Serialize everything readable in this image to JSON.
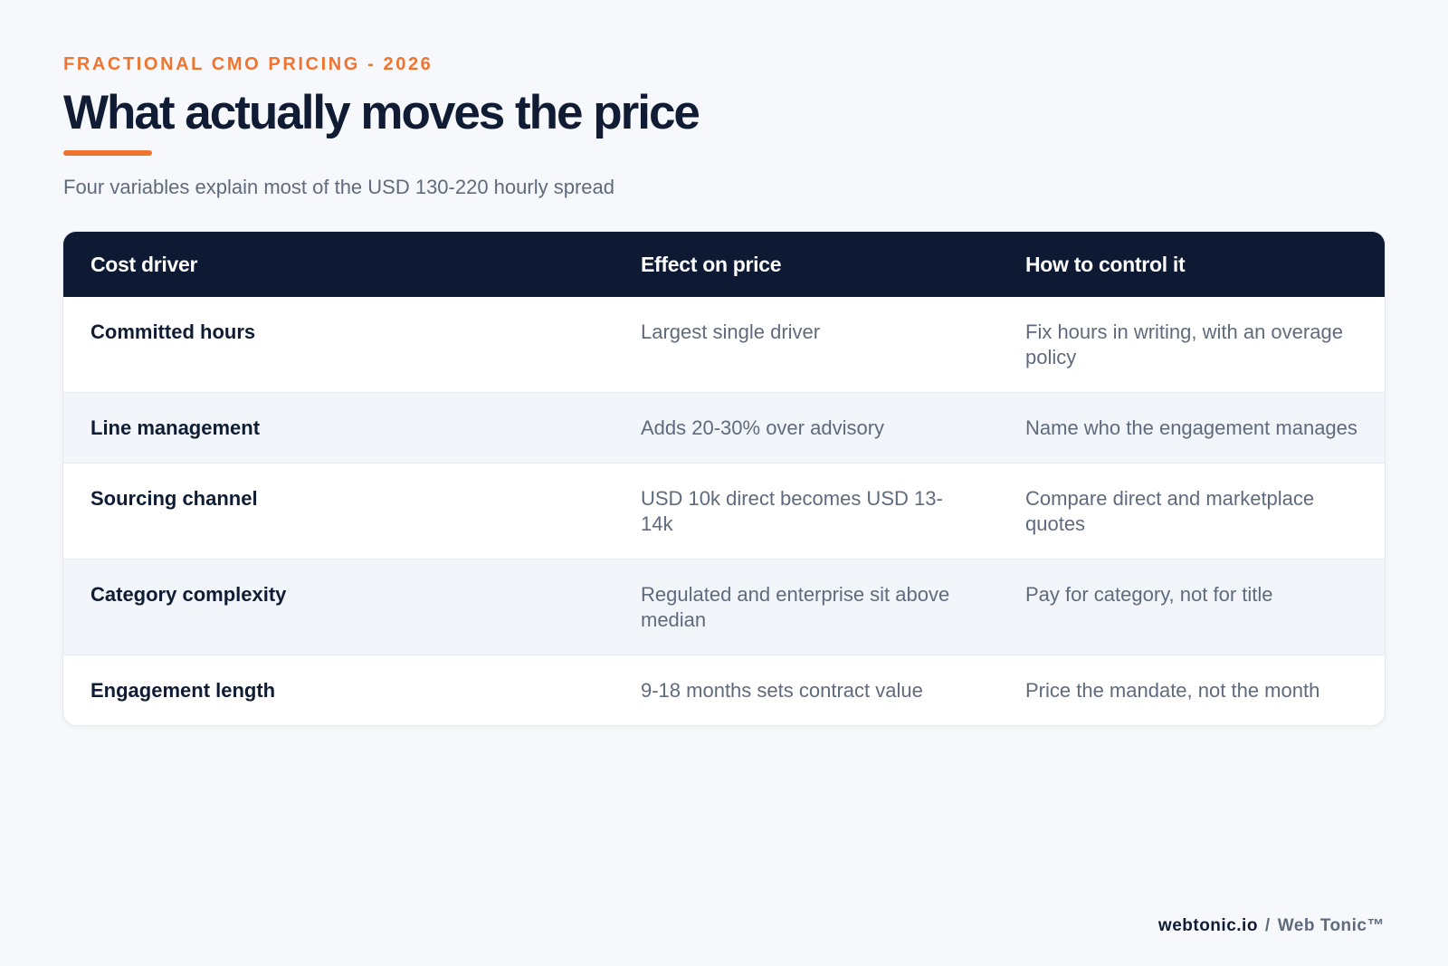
{
  "header": {
    "eyebrow": "FRACTIONAL CMO PRICING - 2026",
    "title": "What actually moves the price",
    "subtitle": "Four variables explain most of the USD 130-220 hourly spread"
  },
  "colors": {
    "accent": "#ee7430",
    "header_bg": "#0e1a33",
    "page_bg": "#f6f8fb"
  },
  "table": {
    "columns": [
      "Cost driver",
      "Effect on price",
      "How to control it"
    ],
    "rows": [
      {
        "driver": "Committed hours",
        "effect": "Largest single driver",
        "control": "Fix hours in writing, with an overage policy"
      },
      {
        "driver": "Line management",
        "effect": "Adds 20-30% over advisory",
        "control": "Name who the engagement manages"
      },
      {
        "driver": "Sourcing channel",
        "effect": "USD 10k direct becomes USD 13-14k",
        "control": "Compare direct and marketplace quotes"
      },
      {
        "driver": "Category complexity",
        "effect": "Regulated and enterprise sit above median",
        "control": "Pay for category, not for title"
      },
      {
        "driver": "Engagement length",
        "effect": "9-18 months sets contract value",
        "control": "Price the mandate, not the month"
      }
    ]
  },
  "footer": {
    "site": "webtonic.io",
    "separator": "/",
    "brand": "Web Tonic™"
  }
}
